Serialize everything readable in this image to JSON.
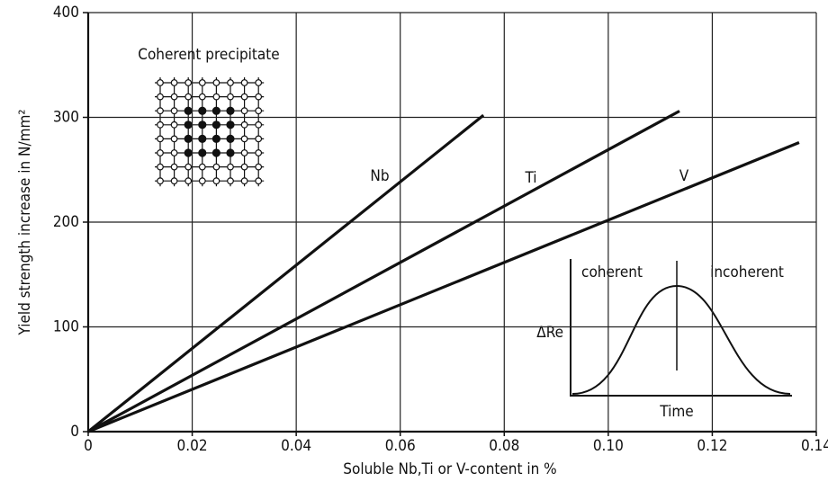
{
  "chart_data": {
    "type": "line",
    "x_label": "Soluble Nb,Ti or V-content in %",
    "y_label": "Yield strength increase in N/mm²",
    "series": [
      {
        "name": "Nb",
        "color": "#111111",
        "x": [
          0,
          0.076
        ],
        "values": [
          0,
          302
        ]
      },
      {
        "name": "Ti",
        "color": "#111111",
        "x": [
          0,
          0.1137
        ],
        "values": [
          0,
          306
        ]
      },
      {
        "name": "V",
        "color": "#111111",
        "x": [
          0,
          0.1367
        ],
        "values": [
          0,
          276
        ]
      }
    ],
    "xlim": [
      0,
      0.14
    ],
    "xticks": [
      0,
      0.02,
      0.04,
      0.06,
      0.08,
      {
        "value": 0.1,
        "label": "0.10"
      },
      0.12,
      0.14
    ],
    "ylim": [
      0,
      400
    ],
    "yticks": [
      0,
      100,
      200,
      300,
      400
    ],
    "grid": true,
    "annotation": "Coherent precipitate",
    "inset": {
      "regions": [
        "coherent",
        "incoherent"
      ],
      "y_label": "ΔRe",
      "x_label": "Time"
    }
  }
}
